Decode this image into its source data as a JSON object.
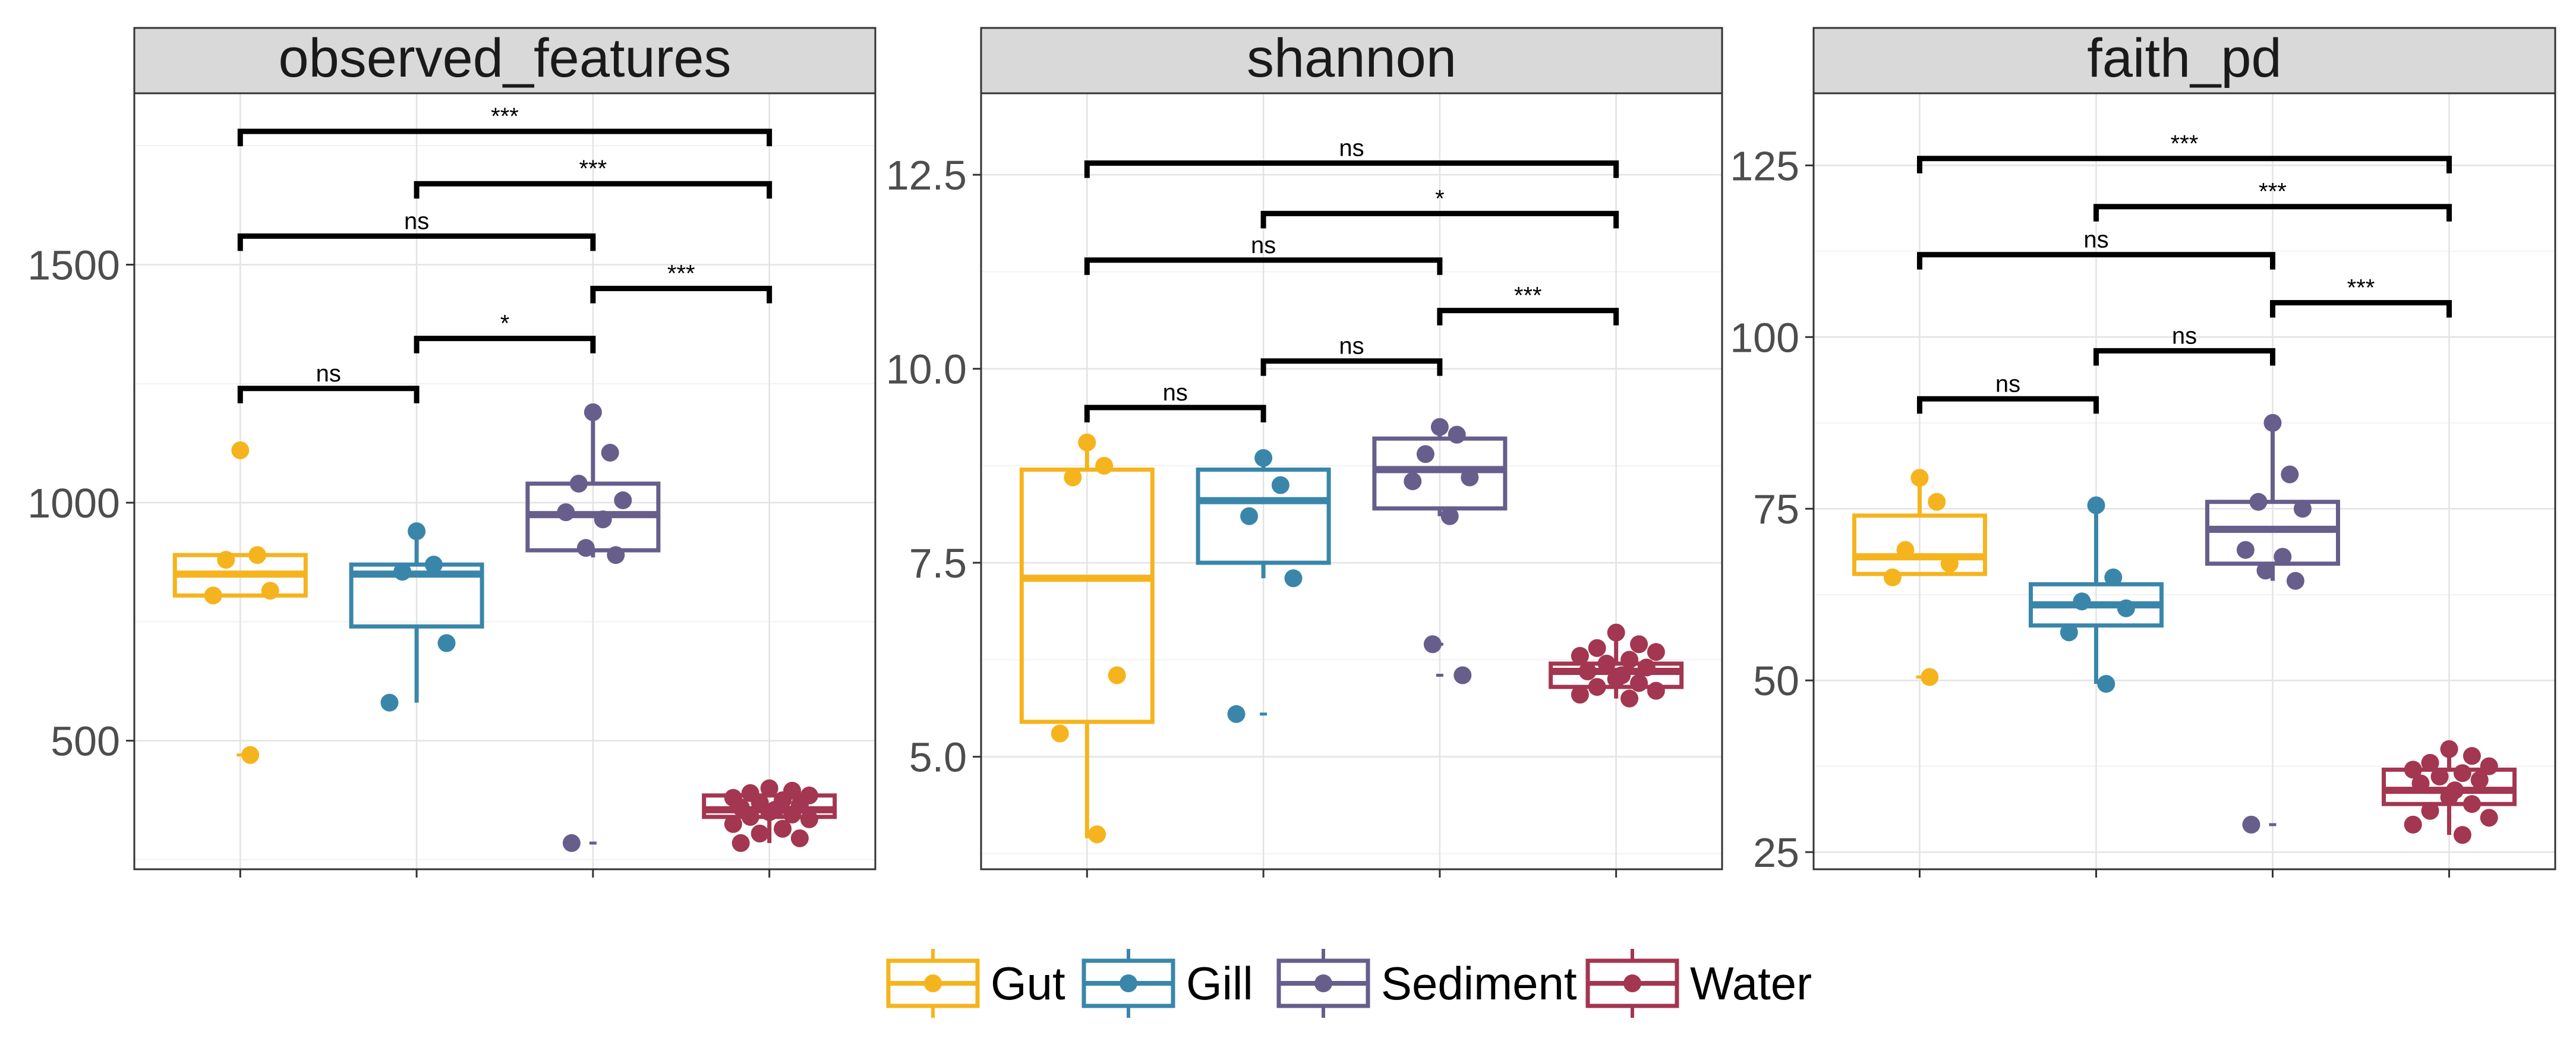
{
  "chart_data": {
    "type": "box",
    "groups": [
      "Gut",
      "Gill",
      "Sediment",
      "Water"
    ],
    "colors": {
      "Gut": "#F5B41E",
      "Gill": "#3A86AA",
      "Sediment": "#675E8C",
      "Water": "#A33650"
    },
    "legend": {
      "position": "bottom",
      "items": [
        {
          "label": "Gut",
          "color": "#F5B41E"
        },
        {
          "label": "Gill",
          "color": "#3A86AA"
        },
        {
          "label": "Sediment",
          "color": "#675E8C"
        },
        {
          "label": "Water",
          "color": "#A33650"
        }
      ]
    },
    "panels": [
      {
        "title": "observed_features",
        "ylim": [
          230,
          1860
        ],
        "yticks": [
          500,
          1000,
          1500
        ],
        "ytick_labels": [
          "500",
          "1000",
          "1500"
        ],
        "boxes": [
          {
            "group": "Gut",
            "q1": 805,
            "median": 850,
            "q3": 890,
            "whisker_low": 805,
            "whisker_high": 890,
            "outliers": [
              1110,
              470
            ],
            "points": [
              1110,
              890,
              880,
              815,
              805,
              470
            ]
          },
          {
            "group": "Gill",
            "q1": 740,
            "median": 850,
            "q3": 870,
            "whisker_low": 580,
            "whisker_high": 940,
            "outliers": [],
            "points": [
              940,
              870,
              855,
              705,
              580
            ]
          },
          {
            "group": "Sediment",
            "q1": 900,
            "median": 975,
            "q3": 1040,
            "whisker_low": 885,
            "whisker_high": 1190,
            "outliers": [
              285
            ],
            "points": [
              1190,
              1105,
              1040,
              1005,
              980,
              965,
              905,
              890,
              285
            ]
          },
          {
            "group": "Water",
            "q1": 340,
            "median": 355,
            "q3": 385,
            "whisker_low": 285,
            "whisker_high": 400,
            "outliers": [],
            "points": [
              400,
              395,
              390,
              385,
              380,
              375,
              370,
              365,
              360,
              355,
              350,
              345,
              340,
              335,
              325,
              315,
              305,
              295,
              285
            ]
          }
        ],
        "comparisons": [
          {
            "from": "Gut",
            "to": "Water",
            "label": "***",
            "y": 1780
          },
          {
            "from": "Gill",
            "to": "Water",
            "label": "***",
            "y": 1670
          },
          {
            "from": "Gut",
            "to": "Sediment",
            "label": "ns",
            "y": 1560
          },
          {
            "from": "Sediment",
            "to": "Water",
            "label": "***",
            "y": 1450
          },
          {
            "from": "Gill",
            "to": "Sediment",
            "label": "*",
            "y": 1345
          },
          {
            "from": "Gut",
            "to": "Gill",
            "label": "ns",
            "y": 1240
          }
        ]
      },
      {
        "title": "shannon",
        "ylim": [
          3.55,
          13.55
        ],
        "yticks": [
          5.0,
          7.5,
          10.0,
          12.5
        ],
        "ytick_labels": [
          "5.0",
          "7.5",
          "10.0",
          "12.5"
        ],
        "boxes": [
          {
            "group": "Gut",
            "q1": 5.45,
            "median": 7.3,
            "q3": 8.7,
            "whisker_low": 3.95,
            "whisker_high": 9.05,
            "outliers": [],
            "points": [
              9.05,
              8.75,
              8.6,
              6.05,
              5.3,
              4.0
            ]
          },
          {
            "group": "Gill",
            "q1": 7.5,
            "median": 8.3,
            "q3": 8.7,
            "whisker_low": 7.3,
            "whisker_high": 8.8,
            "outliers": [
              5.55
            ],
            "points": [
              8.85,
              8.5,
              8.1,
              7.3,
              5.55
            ]
          },
          {
            "group": "Sediment",
            "q1": 8.2,
            "median": 8.7,
            "q3": 9.1,
            "whisker_low": 8.1,
            "whisker_high": 9.25,
            "outliers": [
              6.45,
              6.05
            ],
            "points": [
              9.25,
              9.15,
              8.9,
              8.6,
              8.55,
              8.1,
              6.45,
              6.05
            ]
          },
          {
            "group": "Water",
            "q1": 5.9,
            "median": 6.1,
            "q3": 6.2,
            "whisker_low": 5.75,
            "whisker_high": 6.6,
            "outliers": [],
            "points": [
              6.6,
              6.45,
              6.4,
              6.35,
              6.3,
              6.25,
              6.2,
              6.15,
              6.1,
              6.05,
              6.0,
              5.95,
              5.9,
              5.85,
              5.8,
              5.75
            ]
          }
        ],
        "comparisons": [
          {
            "from": "Gut",
            "to": "Water",
            "label": "ns",
            "y": 12.65
          },
          {
            "from": "Gill",
            "to": "Water",
            "label": "*",
            "y": 12.0
          },
          {
            "from": "Gut",
            "to": "Sediment",
            "label": "ns",
            "y": 11.4
          },
          {
            "from": "Sediment",
            "to": "Water",
            "label": "***",
            "y": 10.75
          },
          {
            "from": "Gill",
            "to": "Sediment",
            "label": "ns",
            "y": 10.1
          },
          {
            "from": "Gut",
            "to": "Gill",
            "label": "ns",
            "y": 9.5
          }
        ]
      },
      {
        "title": "faith_pd",
        "ylim": [
          22.5,
          135.5
        ],
        "yticks": [
          25,
          50,
          75,
          100,
          125
        ],
        "ytick_labels": [
          "25",
          "50",
          "75",
          "100",
          "125"
        ],
        "boxes": [
          {
            "group": "Gut",
            "q1": 65.5,
            "median": 68,
            "q3": 74,
            "whisker_low": 65.5,
            "whisker_high": 79.5,
            "outliers": [
              50.5
            ],
            "points": [
              79.5,
              76,
              69,
              67,
              65,
              50.5
            ]
          },
          {
            "group": "Gill",
            "q1": 58,
            "median": 61,
            "q3": 64,
            "whisker_low": 49.5,
            "whisker_high": 75.5,
            "outliers": [],
            "points": [
              75.5,
              65,
              61.5,
              60.5,
              57,
              49.5
            ]
          },
          {
            "group": "Sediment",
            "q1": 67,
            "median": 72,
            "q3": 76,
            "whisker_low": 64.5,
            "whisker_high": 87.5,
            "outliers": [
              29
            ],
            "points": [
              87.5,
              80,
              76,
              75,
              69,
              68,
              66,
              64.5,
              29
            ]
          },
          {
            "group": "Water",
            "q1": 32,
            "median": 34,
            "q3": 37,
            "whisker_low": 27.5,
            "whisker_high": 40,
            "outliers": [],
            "points": [
              40,
              39,
              38,
              37.5,
              37,
              36.5,
              36,
              35.5,
              35,
              34,
              33,
              32,
              31,
              30,
              29,
              27.5
            ]
          }
        ],
        "comparisons": [
          {
            "from": "Gut",
            "to": "Water",
            "label": "***",
            "y": 126
          },
          {
            "from": "Gill",
            "to": "Water",
            "label": "***",
            "y": 119
          },
          {
            "from": "Gut",
            "to": "Sediment",
            "label": "ns",
            "y": 112
          },
          {
            "from": "Sediment",
            "to": "Water",
            "label": "***",
            "y": 105
          },
          {
            "from": "Gill",
            "to": "Sediment",
            "label": "ns",
            "y": 98
          },
          {
            "from": "Gut",
            "to": "Gill",
            "label": "ns",
            "y": 91
          }
        ]
      }
    ]
  }
}
